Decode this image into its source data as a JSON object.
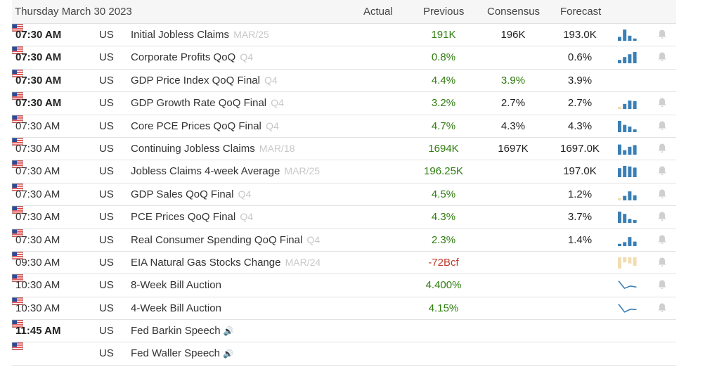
{
  "header": {
    "date": "Thursday March 30 2023",
    "columns": {
      "actual": "Actual",
      "previous": "Previous",
      "consensus": "Consensus",
      "forecast": "Forecast"
    }
  },
  "colors": {
    "positive": "#2e7d0e",
    "negative": "#c0392b",
    "bar": "#3a7fb5",
    "bar_light": "#f2ddb1",
    "bell": "#cfcfcf"
  },
  "rows": [
    {
      "time": "07:30 AM",
      "bold": true,
      "country": "US",
      "event": "Initial Jobless Claims",
      "ref": "MAR/25",
      "actual": "",
      "previous": "191K",
      "prev_color": "green",
      "consensus": "196K",
      "cons_color": "dark",
      "forecast": "193.0K",
      "spark": "bars",
      "bars": [
        0.35,
        1.0,
        0.45,
        0.2
      ],
      "bar_tones": [
        "b",
        "b",
        "b",
        "b"
      ],
      "bell": true
    },
    {
      "time": "07:30 AM",
      "bold": true,
      "country": "US",
      "event": "Corporate Profits QoQ",
      "ref": "Q4",
      "actual": "",
      "previous": "0.8%",
      "prev_color": "green",
      "consensus": "",
      "cons_color": "dark",
      "forecast": "0.6%",
      "spark": "bars",
      "bars": [
        0.3,
        0.55,
        0.8,
        1.0
      ],
      "bar_tones": [
        "b",
        "b",
        "b",
        "b"
      ],
      "bell": true
    },
    {
      "time": "07:30 AM",
      "bold": true,
      "country": "US",
      "event": "GDP Price Index QoQ Final",
      "ref": "Q4",
      "actual": "",
      "previous": "4.4%",
      "prev_color": "green",
      "consensus": "3.9%",
      "cons_color": "green",
      "forecast": "3.9%",
      "spark": "none",
      "bars": [],
      "bar_tones": [],
      "bell": false
    },
    {
      "time": "07:30 AM",
      "bold": true,
      "country": "US",
      "event": "GDP Growth Rate QoQ Final",
      "ref": "Q4",
      "actual": "",
      "previous": "3.2%",
      "prev_color": "green",
      "consensus": "2.7%",
      "cons_color": "dark",
      "forecast": "2.7%",
      "spark": "bars",
      "bars": [
        0.2,
        0.45,
        0.75,
        0.7
      ],
      "bar_tones": [
        "l",
        "b",
        "b",
        "b"
      ],
      "bell": true
    },
    {
      "time": "07:30 AM",
      "bold": false,
      "country": "US",
      "event": "Core PCE Prices QoQ Final",
      "ref": "Q4",
      "actual": "",
      "previous": "4.7%",
      "prev_color": "green",
      "consensus": "4.3%",
      "cons_color": "dark",
      "forecast": "4.3%",
      "spark": "bars",
      "bars": [
        1.0,
        0.65,
        0.5,
        0.25
      ],
      "bar_tones": [
        "b",
        "b",
        "b",
        "b"
      ],
      "bell": true
    },
    {
      "time": "07:30 AM",
      "bold": false,
      "country": "US",
      "event": "Continuing Jobless Claims",
      "ref": "MAR/18",
      "actual": "",
      "previous": "1694K",
      "prev_color": "green",
      "consensus": "1697K",
      "cons_color": "dark",
      "forecast": "1697.0K",
      "spark": "bars",
      "bars": [
        0.9,
        0.4,
        0.7,
        0.85
      ],
      "bar_tones": [
        "b",
        "b",
        "b",
        "b"
      ],
      "bell": true
    },
    {
      "time": "07:30 AM",
      "bold": false,
      "country": "US",
      "event": "Jobless Claims 4-week Average",
      "ref": "MAR/25",
      "actual": "",
      "previous": "196.25K",
      "prev_color": "green",
      "consensus": "",
      "cons_color": "dark",
      "forecast": "197.0K",
      "spark": "bars",
      "bars": [
        0.8,
        1.0,
        0.95,
        0.85
      ],
      "bar_tones": [
        "b",
        "b",
        "b",
        "b"
      ],
      "bell": true
    },
    {
      "time": "07:30 AM",
      "bold": false,
      "country": "US",
      "event": "GDP Sales QoQ Final",
      "ref": "Q4",
      "actual": "",
      "previous": "4.5%",
      "prev_color": "green",
      "consensus": "",
      "cons_color": "dark",
      "forecast": "1.2%",
      "spark": "bars",
      "bars": [
        0.2,
        0.4,
        0.8,
        0.45
      ],
      "bar_tones": [
        "l",
        "b",
        "b",
        "b"
      ],
      "bell": true
    },
    {
      "time": "07:30 AM",
      "bold": false,
      "country": "US",
      "event": "PCE Prices QoQ Final",
      "ref": "Q4",
      "actual": "",
      "previous": "4.3%",
      "prev_color": "green",
      "consensus": "",
      "cons_color": "dark",
      "forecast": "3.7%",
      "spark": "bars",
      "bars": [
        1.0,
        0.8,
        0.35,
        0.25
      ],
      "bar_tones": [
        "b",
        "b",
        "b",
        "b"
      ],
      "bell": true
    },
    {
      "time": "07:30 AM",
      "bold": false,
      "country": "US",
      "event": "Real Consumer Spending QoQ Final",
      "ref": "Q4",
      "actual": "",
      "previous": "2.3%",
      "prev_color": "green",
      "consensus": "",
      "cons_color": "dark",
      "forecast": "1.4%",
      "spark": "bars",
      "bars": [
        0.2,
        0.35,
        0.8,
        0.4
      ],
      "bar_tones": [
        "b",
        "b",
        "b",
        "b"
      ],
      "bell": true
    },
    {
      "time": "09:30 AM",
      "bold": false,
      "country": "US",
      "event": "EIA Natural Gas Stocks Change",
      "ref": "MAR/24",
      "actual": "",
      "previous": "-72Bcf",
      "prev_color": "red",
      "consensus": "",
      "cons_color": "dark",
      "forecast": "",
      "spark": "neg_bars",
      "bars": [
        1.0,
        0.45,
        0.55,
        0.75
      ],
      "bar_tones": [
        "l",
        "l",
        "l",
        "l"
      ],
      "bell": true
    },
    {
      "time": "10:30 AM",
      "bold": false,
      "country": "US",
      "event": "8-Week Bill Auction",
      "ref": "",
      "actual": "",
      "previous": "4.400%",
      "prev_color": "green",
      "consensus": "",
      "cons_color": "dark",
      "forecast": "",
      "spark": "line",
      "line": [
        0.9,
        0.25,
        0.45,
        0.35
      ],
      "bars": [],
      "bar_tones": [],
      "bell": true
    },
    {
      "time": "10:30 AM",
      "bold": false,
      "country": "US",
      "event": "4-Week Bill Auction",
      "ref": "",
      "actual": "",
      "previous": "4.15%",
      "prev_color": "green",
      "consensus": "",
      "cons_color": "dark",
      "forecast": "",
      "spark": "line",
      "line": [
        0.9,
        0.2,
        0.45,
        0.42
      ],
      "bars": [],
      "bar_tones": [],
      "bell": true
    },
    {
      "time": "11:45 AM",
      "bold": true,
      "country": "US",
      "event": "Fed Barkin Speech",
      "ref": "",
      "speech": true,
      "actual": "",
      "previous": "",
      "prev_color": "green",
      "consensus": "",
      "cons_color": "dark",
      "forecast": "",
      "spark": "none",
      "bars": [],
      "bar_tones": [],
      "bell": false
    },
    {
      "time": "",
      "bold": false,
      "country": "US",
      "event": "Fed Waller Speech",
      "ref": "",
      "speech": true,
      "actual": "",
      "previous": "",
      "prev_color": "green",
      "consensus": "",
      "cons_color": "dark",
      "forecast": "",
      "spark": "none",
      "bars": [],
      "bar_tones": [],
      "bell": false
    }
  ]
}
